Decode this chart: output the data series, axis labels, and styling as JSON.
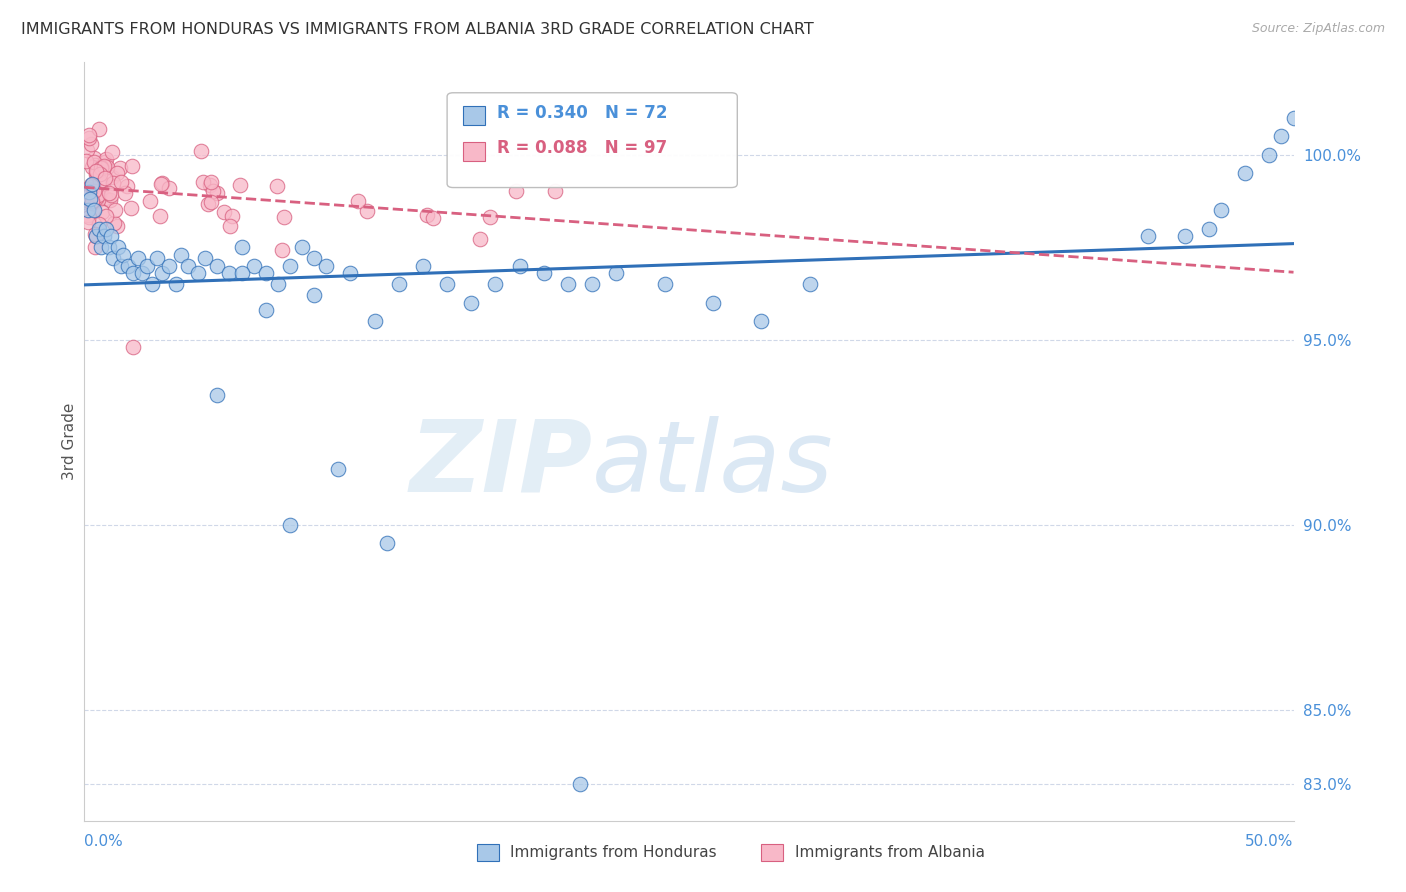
{
  "title": "IMMIGRANTS FROM HONDURAS VS IMMIGRANTS FROM ALBANIA 3RD GRADE CORRELATION CHART",
  "source": "Source: ZipAtlas.com",
  "ylabel": "3rd Grade",
  "ytick_vals": [
    83.0,
    85.0,
    90.0,
    95.0,
    100.0
  ],
  "ytick_labels": [
    "83.0%",
    "85.0%",
    "90.0%",
    "95.0%",
    "100.0%"
  ],
  "xmin": 0.0,
  "xmax": 50.0,
  "ymin": 82.0,
  "ymax": 102.5,
  "color_blue": "#a8c8e8",
  "color_pink": "#f8b8c8",
  "line_blue": "#3070b8",
  "line_pink": "#d86080",
  "background": "#ffffff",
  "legend_r_blue": "R = 0.340",
  "legend_n_blue": "N = 72",
  "legend_r_pink": "R = 0.088",
  "legend_n_pink": "N = 97"
}
